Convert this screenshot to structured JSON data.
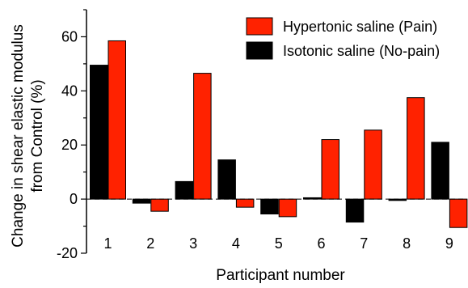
{
  "chart_data": {
    "type": "bar",
    "xlabel": "Participant number",
    "ylabel_lines": [
      "Change in shear elastic modulus",
      "from Control (%)"
    ],
    "categories": [
      "1",
      "2",
      "3",
      "4",
      "5",
      "6",
      "7",
      "8",
      "9"
    ],
    "ylim": [
      -20,
      70
    ],
    "yticks": [
      "-20",
      "0",
      "20",
      "40",
      "60"
    ],
    "legend_position": "top-right",
    "grid": false,
    "zero_line": "dashed",
    "series": [
      {
        "name": "Isotonic saline (No-pain)",
        "color": "#000000",
        "values": [
          49.5,
          -1.5,
          6.5,
          14.5,
          -5.5,
          0.5,
          -8.5,
          -0.5,
          21
        ]
      },
      {
        "name": "Hypertonic saline (Pain)",
        "color": "#ff2200",
        "values": [
          58.5,
          -4.5,
          46.5,
          -3,
          -6.5,
          22,
          25.5,
          37.5,
          -10.5
        ]
      }
    ],
    "legend_order": [
      1,
      0
    ]
  }
}
